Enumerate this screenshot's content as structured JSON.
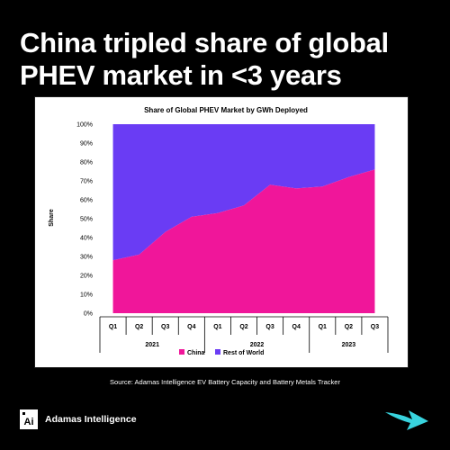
{
  "headline": {
    "line1": "China tripled share of global",
    "line2": "PHEV market in <3 years"
  },
  "chart_data": {
    "type": "area",
    "stacked": true,
    "title": "Share of Global PHEV Market by GWh Deployed",
    "ylabel": "Share",
    "ylim": [
      0,
      100
    ],
    "yticks": [
      "0%",
      "10%",
      "20%",
      "30%",
      "40%",
      "50%",
      "60%",
      "70%",
      "80%",
      "90%",
      "100%"
    ],
    "categories": [
      "Q1",
      "Q2",
      "Q3",
      "Q4",
      "Q1",
      "Q2",
      "Q3",
      "Q4",
      "Q1",
      "Q2",
      "Q3"
    ],
    "year_groups": [
      {
        "label": "2021",
        "count": 4
      },
      {
        "label": "2022",
        "count": 4
      },
      {
        "label": "2023",
        "count": 3
      }
    ],
    "series": [
      {
        "name": "China",
        "color": "#f0169a",
        "values": [
          28,
          31,
          43,
          51,
          53,
          57,
          68,
          66,
          67,
          72,
          76
        ]
      },
      {
        "name": "Rest of World",
        "color": "#6a3cf4",
        "values": [
          72,
          69,
          57,
          49,
          47,
          43,
          32,
          34,
          33,
          28,
          24
        ]
      }
    ],
    "legend_position": "bottom",
    "grid": false
  },
  "source": "Source: Adamas Intelligence EV Battery Capacity and Battery Metals Tracker",
  "brand": {
    "logo_text": "Ai",
    "name": "Adamas Intelligence"
  },
  "arrow": {
    "color": "#38d3de",
    "icon": "arrow-right-icon"
  }
}
